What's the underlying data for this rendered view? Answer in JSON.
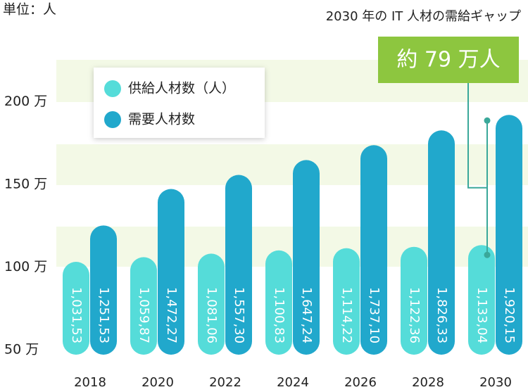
{
  "chart_data": {
    "type": "bar",
    "title": "2030 年の IT 人材の需給ギャップ",
    "unit_label": "単位：人",
    "annotation": "約 79 万人",
    "categories": [
      "2018",
      "2020",
      "2022",
      "2024",
      "2026",
      "2028",
      "2030"
    ],
    "series": [
      {
        "name": "供給人材数（人）",
        "color": "#55dcd9",
        "values": [
          103.153,
          105.987,
          108.106,
          110.083,
          111.422,
          112.236,
          113.304
        ],
        "value_labels": [
          "1,031,53",
          "1,059,87",
          "1,081,06",
          "1,100,83",
          "1,114,22",
          "1,122,36",
          "1,133,04"
        ]
      },
      {
        "name": "需要人材数",
        "color": "#21a8cc",
        "values": [
          125.153,
          147.227,
          155.73,
          164.724,
          173.71,
          182.633,
          192.015
        ],
        "value_labels": [
          "1,251,53",
          "1,472,27",
          "1,557,30",
          "1,647,24",
          "1,737,10",
          "1,826,33",
          "1,920,15"
        ]
      }
    ],
    "ylim": [
      47,
      220
    ],
    "yticks": [
      {
        "value": 50,
        "label": "50 万"
      },
      {
        "value": 100,
        "label": "100 万"
      },
      {
        "value": 150,
        "label": "150 万"
      },
      {
        "value": 200,
        "label": "200 万"
      }
    ],
    "annotation_color": "#8dc63f"
  }
}
